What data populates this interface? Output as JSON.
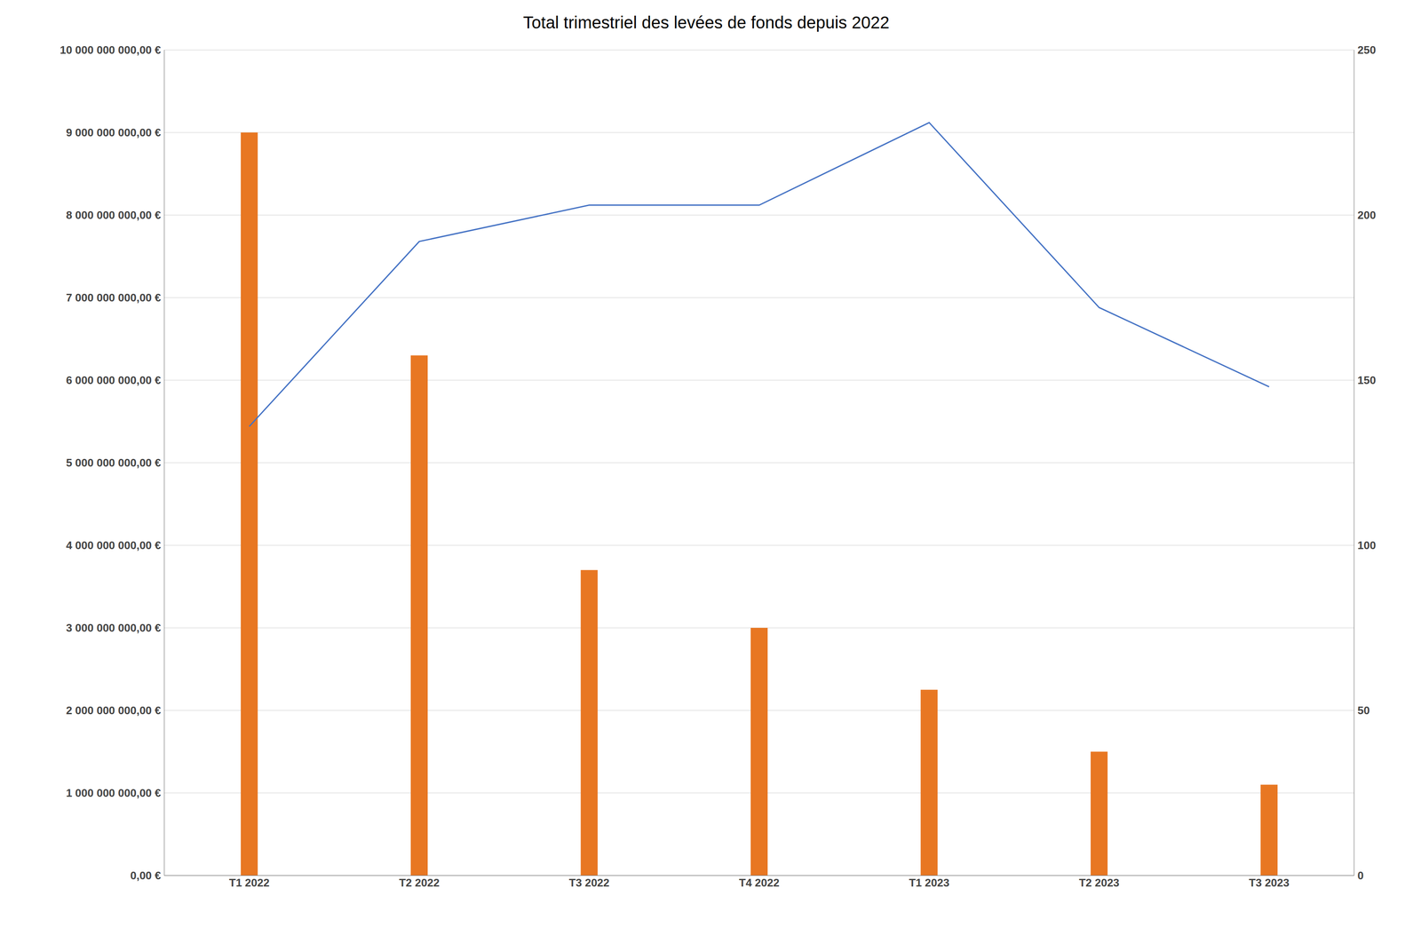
{
  "chart_data": {
    "type": "bar",
    "title": "Total trimestriel des levées de fonds depuis 2022",
    "categories": [
      "T1 2022",
      "T2 2022",
      "T3 2022",
      "T4 2022",
      "T1 2023",
      "T2 2023",
      "T3 2023"
    ],
    "series": [
      {
        "type": "bar",
        "color": "#E87722",
        "values": [
          9000000000,
          6300000000,
          3700000000,
          3000000000,
          2250000000,
          1500000000,
          1100000000
        ]
      },
      {
        "type": "line",
        "color": "#4472C4",
        "axis": "y2",
        "values": [
          136,
          192,
          203,
          203,
          228,
          172,
          148
        ]
      }
    ],
    "ylim": [
      0,
      10000000000
    ],
    "yticks": [
      {
        "value": 0,
        "label": "0,00 €"
      },
      {
        "value": 1000000000,
        "label": "1 000 000 000,00 €"
      },
      {
        "value": 2000000000,
        "label": "2 000 000 000,00 €"
      },
      {
        "value": 3000000000,
        "label": "3 000 000 000,00 €"
      },
      {
        "value": 4000000000,
        "label": "4 000 000 000,00 €"
      },
      {
        "value": 5000000000,
        "label": "5 000 000 000,00 €"
      },
      {
        "value": 6000000000,
        "label": "6 000 000 000,00 €"
      },
      {
        "value": 7000000000,
        "label": "7 000 000 000,00 €"
      },
      {
        "value": 8000000000,
        "label": "8 000 000 000,00 €"
      },
      {
        "value": 9000000000,
        "label": "9 000 000 000,00 €"
      },
      {
        "value": 10000000000,
        "label": "10 000 000 000,00 €"
      }
    ],
    "y2lim": [
      0,
      250
    ],
    "y2ticks": [
      0,
      50,
      100,
      150,
      200,
      250
    ],
    "grid": true
  }
}
